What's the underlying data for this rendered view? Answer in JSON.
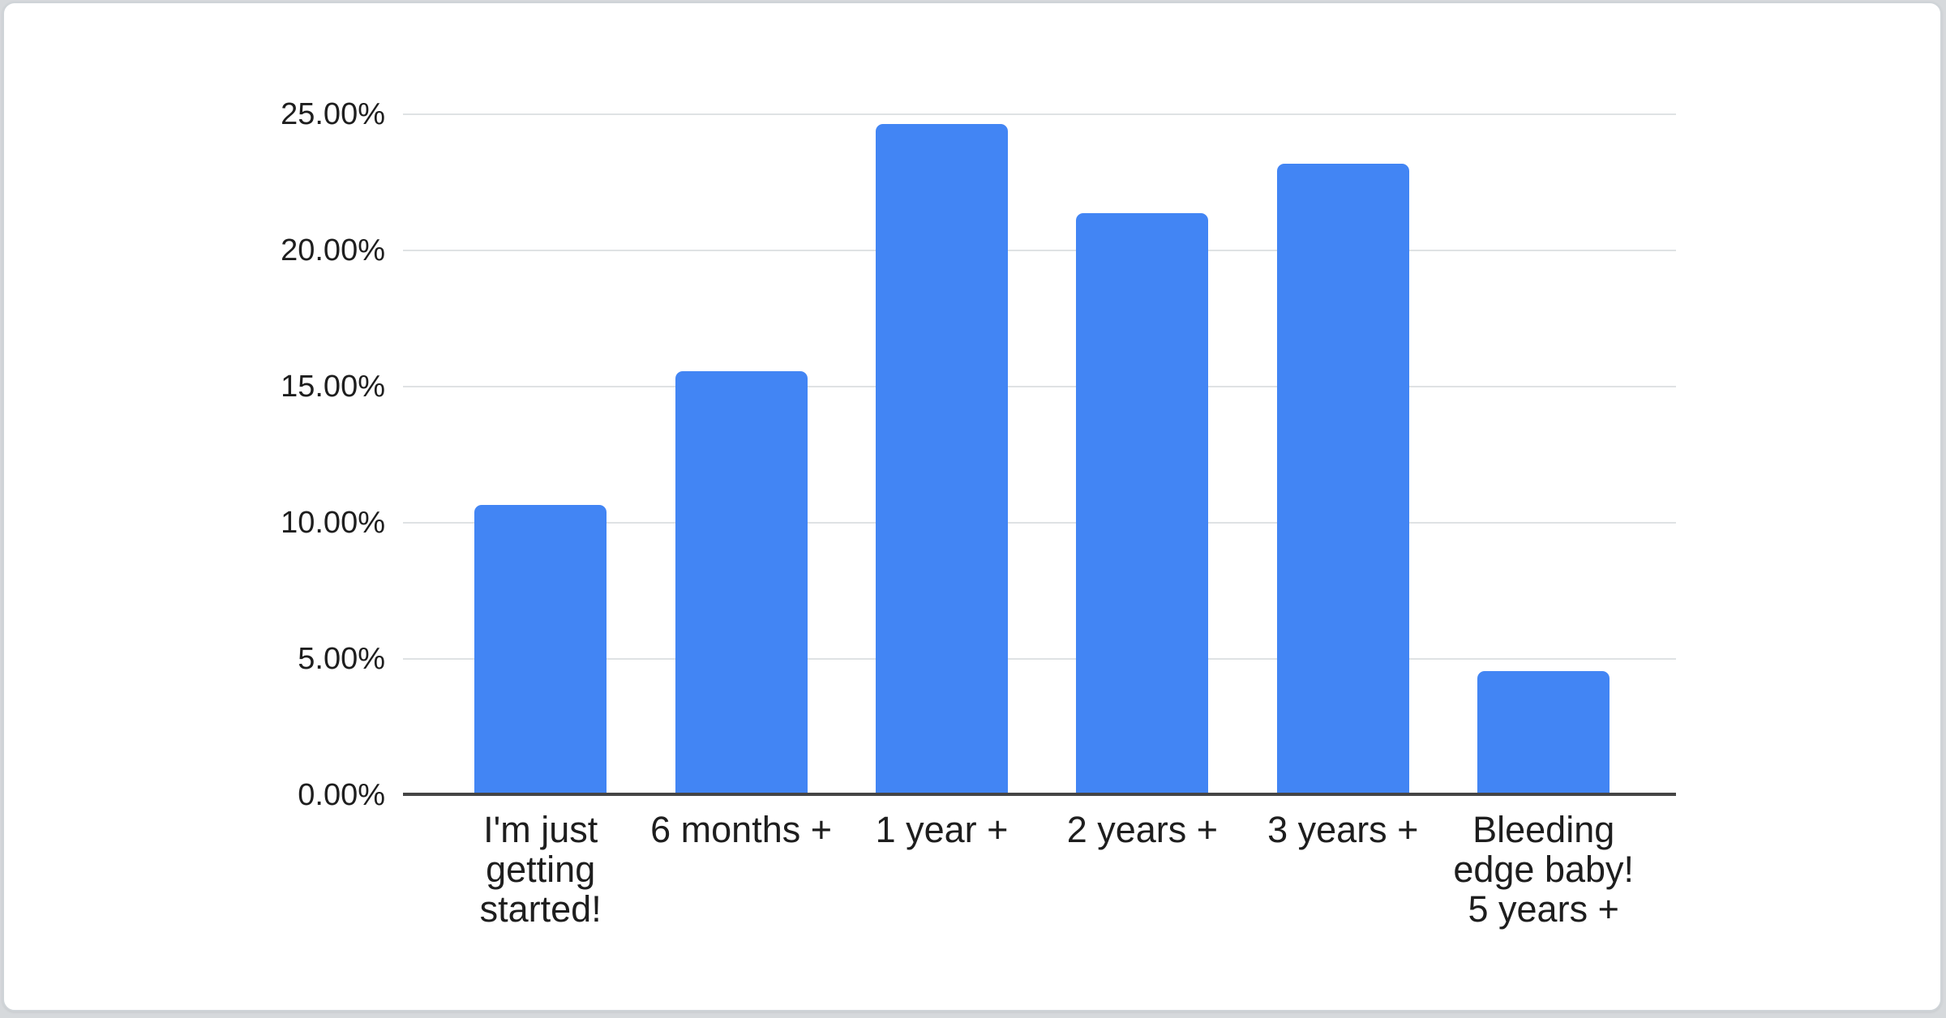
{
  "chart_data": {
    "type": "bar",
    "title": "",
    "xlabel": "",
    "ylabel": "",
    "categories": [
      "I'm just getting started!",
      "6 months +",
      "1 year +",
      "2 years +",
      "3 years +",
      "Bleeding edge baby! 5 years +"
    ],
    "values": [
      10.65,
      15.57,
      24.64,
      21.37,
      23.18,
      4.55
    ],
    "unit": "percent",
    "ylim": [
      0,
      25
    ],
    "ytick_values": [
      0,
      5,
      10,
      15,
      20,
      25
    ],
    "ytick_labels": [
      "0.00%",
      "5.00%",
      "10.00%",
      "15.00%",
      "20.00%",
      "25.00%"
    ],
    "grid": "horizontal",
    "legend": "none",
    "colors": {
      "bar": "#4285f4",
      "gridline": "#dfe2e4",
      "axis_line": "#454545",
      "tick_text": "#1e1e1e",
      "card_background": "#ffffff",
      "card_border": "#cfd4d8",
      "page_background": "#d6d9dc"
    }
  }
}
